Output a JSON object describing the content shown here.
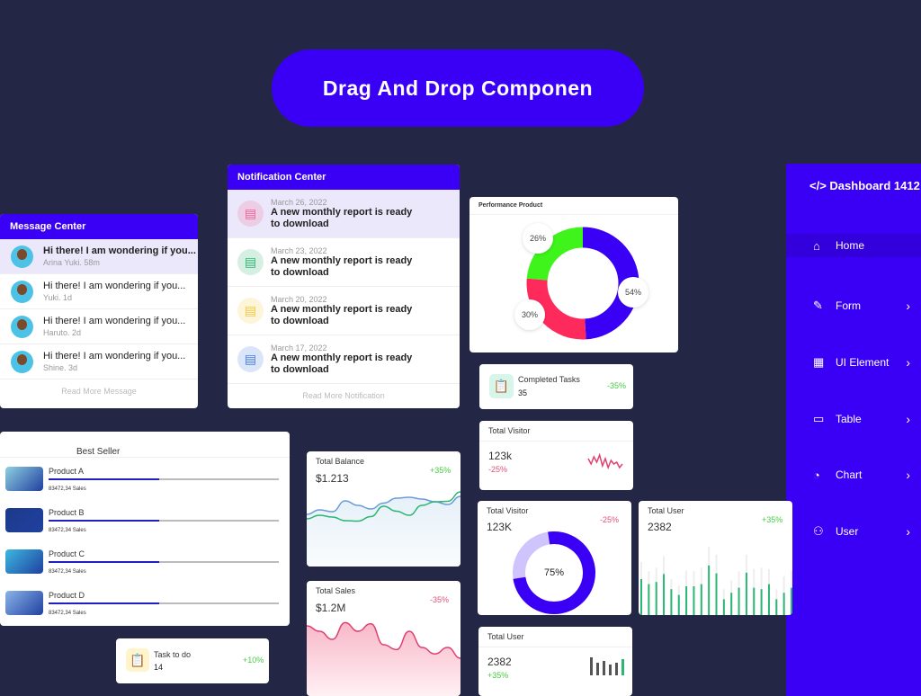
{
  "banner": "Drag And Drop Componen",
  "message_center": {
    "title": "Message Center",
    "items": [
      {
        "text": "Hi there! I am wondering if you...",
        "meta": "Arina Yuki. 58m"
      },
      {
        "text": "Hi there! I am wondering if you...",
        "meta": "Yuki. 1d"
      },
      {
        "text": "Hi there! I am wondering if you...",
        "meta": "Haruto. 2d"
      },
      {
        "text": "Hi there! I am wondering if you...",
        "meta": "Shine. 3d"
      }
    ],
    "more": "Read More Message"
  },
  "notification_center": {
    "title": "Notification Center",
    "items": [
      {
        "date": "March 26, 2022",
        "text": "A new monthly report is ready to download",
        "color": "#f06292"
      },
      {
        "date": "March 23, 2022",
        "text": "A new monthly report is ready to download",
        "color": "#2bb673"
      },
      {
        "date": "March 20, 2022",
        "text": "A new monthly report is ready to download",
        "color": "#f5c842"
      },
      {
        "date": "March 17, 2022",
        "text": "A new monthly report is ready to download",
        "color": "#4a7de0"
      }
    ],
    "more": "Read More Notification"
  },
  "performance": {
    "title": "Performance Product"
  },
  "sidebar": {
    "brand": "</> Dashboard 1412",
    "items": [
      {
        "label": "Home",
        "icon": "home-icon"
      },
      {
        "label": "Form",
        "icon": "edit-icon"
      },
      {
        "label": "UI Element",
        "icon": "grid-icon"
      },
      {
        "label": "Table",
        "icon": "table-icon"
      },
      {
        "label": "Chart",
        "icon": "pie-icon"
      },
      {
        "label": "User",
        "icon": "users-icon"
      }
    ]
  },
  "completed_tasks": {
    "label": "Completed Tasks",
    "value": "35",
    "change": "-35%"
  },
  "total_visitor_small": {
    "label": "Total Visitor",
    "value": "123k",
    "change": "-25%"
  },
  "total_visitor_donut": {
    "label": "Total Visitor",
    "value": "123K",
    "change": "-25%",
    "percent": "75%"
  },
  "total_user_bars": {
    "label": "Total User",
    "value": "2382",
    "change": "+35%"
  },
  "total_user_small": {
    "label": "Total User",
    "value": "2382",
    "change": "+35%"
  },
  "best_seller": {
    "title": "Best Seller",
    "products": [
      {
        "name": "Product A",
        "sales": "83472,34 Sales",
        "progress": 0.48
      },
      {
        "name": "Product B",
        "sales": "83472,34 Sales",
        "progress": 0.48
      },
      {
        "name": "Product C",
        "sales": "83472,34 Sales",
        "progress": 0.48
      },
      {
        "name": "Product D",
        "sales": "83472,34 Sales",
        "progress": 0.48
      }
    ]
  },
  "task_todo": {
    "label": "Task to do",
    "value": "14",
    "change": "+10%"
  },
  "total_balance": {
    "label": "Total Balance",
    "value": "$1.213",
    "change": "+35%"
  },
  "total_sales": {
    "label": "Total Sales",
    "value": "$1.2M",
    "change": "-35%"
  },
  "chart_data": [
    {
      "type": "pie",
      "title": "Performance Product",
      "labels": [
        "54%",
        "30%",
        "26%"
      ],
      "values": [
        54,
        30,
        26
      ],
      "colors": [
        "#3a00f5",
        "#ff2a5c",
        "#3ef41a"
      ]
    },
    {
      "type": "pie",
      "title": "Total Visitor",
      "values": [
        75,
        25
      ],
      "colors": [
        "#3a00f5",
        "#cfc4fb"
      ]
    },
    {
      "type": "line",
      "title": "Total Balance",
      "series": [
        {
          "name": "blue",
          "values": [
            4,
            5,
            4.6,
            7,
            6,
            5.2,
            6.5,
            7.6,
            7.8,
            7.4,
            6.8,
            6.2,
            8
          ],
          "color": "#6b9bd8"
        },
        {
          "name": "green",
          "values": [
            3,
            3.8,
            3.4,
            2.6,
            2.5,
            3.5,
            5.8,
            4.7,
            3.8,
            6,
            6.8,
            6.9,
            9
          ],
          "color": "#2bb673"
        }
      ],
      "ylim": [
        0,
        10
      ]
    },
    {
      "type": "area",
      "title": "Total Sales",
      "values": [
        8,
        7,
        5.5,
        8.6,
        7,
        8.4,
        4.5,
        3.6,
        7,
        4,
        2.8,
        4,
        2
      ],
      "color": "#e04070",
      "ylim": [
        0,
        10
      ]
    },
    {
      "type": "bar",
      "title": "Total User",
      "values": [
        5,
        4.3,
        4.6,
        5.7,
        3.6,
        2.8,
        4,
        4,
        4.3,
        6.9,
        5.8,
        2.2,
        3.1,
        3.8,
        5.9,
        3.8,
        3.6,
        4.3,
        2.2,
        3.1,
        3.8
      ],
      "back": [
        7.4,
        6.1,
        6.6,
        8.2,
        5,
        4.1,
        6.2,
        6.1,
        6.6,
        9.5,
        8.4,
        3.6,
        4.8,
        6.1,
        8.4,
        6.4,
        6.6,
        6.4,
        3.6,
        5.4,
        6.2
      ],
      "ylim": [
        0,
        10
      ]
    },
    {
      "type": "bar",
      "title": "Total User mini",
      "values": [
        10,
        7,
        8,
        6,
        7,
        9
      ],
      "colors": [
        "#555",
        "#555",
        "#555",
        "#555",
        "#555",
        "#2bb673"
      ]
    },
    {
      "type": "line",
      "title": "Total Visitor mini",
      "values": [
        6,
        3,
        7,
        4,
        8,
        2,
        6,
        1,
        5,
        3,
        4,
        1,
        3
      ],
      "color": "#e04070"
    }
  ]
}
